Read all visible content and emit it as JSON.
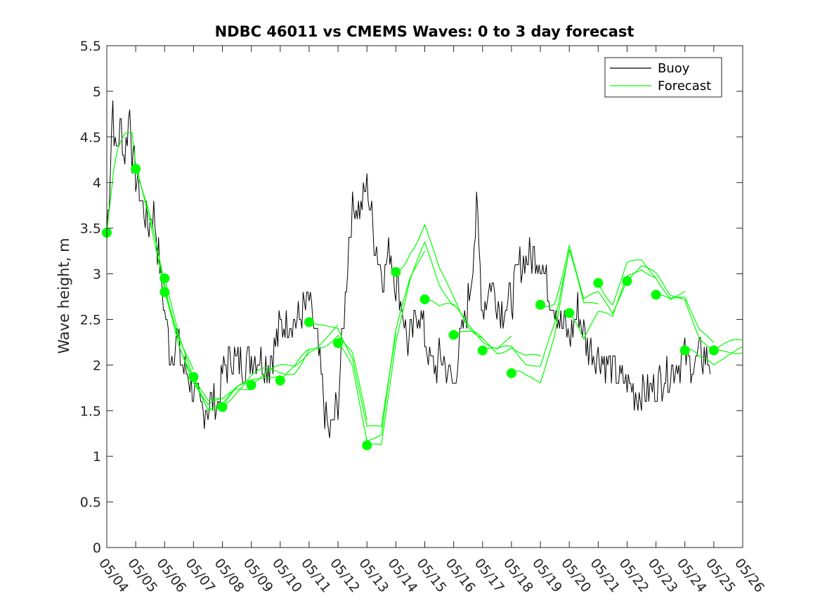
{
  "chart_data": {
    "type": "line",
    "title": "NDBC 46011 vs CMEMS Waves: 0 to 3 day forecast",
    "xlabel": "",
    "ylabel": "Wave height, m",
    "xlim": [
      "05/04",
      "05/26"
    ],
    "ylim": [
      0,
      5.5
    ],
    "x_ticks": [
      "05/04",
      "05/05",
      "05/06",
      "05/07",
      "05/08",
      "05/09",
      "05/10",
      "05/11",
      "05/12",
      "05/13",
      "05/14",
      "05/15",
      "05/16",
      "05/17",
      "05/18",
      "05/19",
      "05/20",
      "05/21",
      "05/22",
      "05/23",
      "05/24",
      "05/25",
      "05/26"
    ],
    "y_ticks": [
      "0",
      "0.5",
      "1",
      "1.5",
      "2",
      "2.5",
      "3",
      "3.5",
      "4",
      "4.5",
      "5",
      "5.5"
    ],
    "grid": false,
    "legend": {
      "placement": "top-right",
      "entries": [
        "Buoy",
        "Forecast"
      ]
    },
    "colors": {
      "buoy": "#000000",
      "forecast": "#00ff00"
    },
    "series": [
      {
        "name": "Buoy",
        "x_day_index": [
          0,
          0.1,
          0.2,
          0.3,
          0.4,
          0.5,
          0.6,
          0.7,
          0.8,
          0.9,
          1.0,
          1.2,
          1.4,
          1.6,
          1.8,
          2.0,
          2.2,
          2.4,
          2.6,
          2.8,
          3.0,
          3.3,
          3.6,
          3.9,
          4.0,
          4.3,
          4.6,
          5.0,
          5.3,
          5.6,
          6.0,
          6.3,
          6.6,
          7.0,
          7.3,
          7.5,
          7.7,
          8.0,
          8.2,
          8.4,
          8.6,
          8.8,
          9.0,
          9.2,
          9.4,
          9.6,
          9.8,
          10.0,
          10.2,
          10.4,
          10.6,
          10.8,
          11.0,
          11.2,
          11.4,
          11.6,
          11.8,
          12.0,
          12.2,
          12.4,
          12.6,
          12.8,
          13.0,
          13.3,
          13.6,
          14.0,
          14.3,
          14.6,
          15.0,
          15.3,
          15.5,
          15.7,
          16.0,
          16.3,
          16.6,
          17.0,
          17.3,
          17.6,
          18.0,
          18.3,
          18.6,
          19.0,
          19.3,
          19.6,
          20.0,
          20.3,
          20.6,
          20.9
        ],
        "values": [
          3.5,
          4.0,
          4.9,
          4.3,
          4.5,
          4.6,
          4.3,
          4.5,
          4.8,
          4.2,
          4.1,
          3.8,
          3.5,
          3.7,
          3.2,
          2.6,
          2.1,
          2.3,
          2.0,
          1.9,
          1.7,
          1.5,
          1.6,
          1.6,
          1.9,
          2.1,
          2.0,
          2.1,
          2.1,
          2.0,
          2.4,
          2.5,
          2.5,
          2.7,
          2.2,
          1.6,
          1.2,
          1.6,
          2.5,
          3.5,
          3.8,
          3.7,
          4.0,
          3.5,
          3.2,
          3.0,
          3.3,
          2.9,
          2.7,
          2.2,
          2.4,
          2.6,
          2.3,
          2.0,
          2.0,
          2.1,
          1.9,
          1.8,
          2.2,
          2.5,
          2.9,
          3.7,
          2.6,
          2.9,
          2.6,
          2.7,
          3.1,
          3.2,
          3.2,
          2.8,
          2.7,
          2.5,
          2.3,
          2.6,
          2.2,
          2.1,
          2.0,
          1.9,
          1.8,
          1.7,
          1.7,
          1.8,
          1.9,
          2.0,
          2.1,
          2.0,
          2.1,
          2.0
        ]
      },
      {
        "name": "Forecast",
        "x_day_index": [
          0,
          0.3,
          0.6,
          0.9,
          1.0,
          1.5,
          2.0,
          2.5,
          3.0,
          3.5,
          4.0,
          4.5,
          5.0,
          5.5,
          6.0,
          6.5,
          7.0,
          7.5,
          8.0,
          8.5,
          9.0,
          9.5,
          10.0,
          10.5,
          11.0,
          11.5,
          12.0,
          12.5,
          13.0,
          13.5,
          14.0,
          14.5,
          15.0,
          15.5,
          16.0,
          16.5,
          17.0,
          17.5,
          18.0,
          18.5,
          19.0,
          19.5,
          20.0,
          20.5,
          21.0,
          21.5,
          22.0
        ],
        "values": [
          3.45,
          4.3,
          4.5,
          4.5,
          4.15,
          3.6,
          2.9,
          2.3,
          1.9,
          1.55,
          1.54,
          1.7,
          1.8,
          1.9,
          1.95,
          2.0,
          2.2,
          2.3,
          2.4,
          2.1,
          1.3,
          1.25,
          2.3,
          2.9,
          3.3,
          2.9,
          2.72,
          2.5,
          2.35,
          2.25,
          2.3,
          2.1,
          2.0,
          2.4,
          3.2,
          2.6,
          2.7,
          2.55,
          3.0,
          3.1,
          3.0,
          2.8,
          2.8,
          2.4,
          2.2,
          2.2,
          2.2
        ]
      }
    ],
    "markers": {
      "x_day_index": [
        0,
        1,
        2,
        2,
        3,
        4,
        5,
        6,
        7,
        8,
        9,
        10,
        11,
        12,
        13,
        14,
        15,
        16,
        17,
        18,
        19,
        20,
        21
      ],
      "values": [
        3.45,
        4.15,
        2.95,
        2.8,
        1.87,
        1.54,
        1.78,
        1.83,
        2.47,
        2.24,
        1.12,
        3.02,
        2.72,
        2.33,
        2.16,
        1.91,
        2.66,
        2.57,
        2.9,
        2.92,
        2.77,
        2.16,
        2.16
      ]
    }
  }
}
